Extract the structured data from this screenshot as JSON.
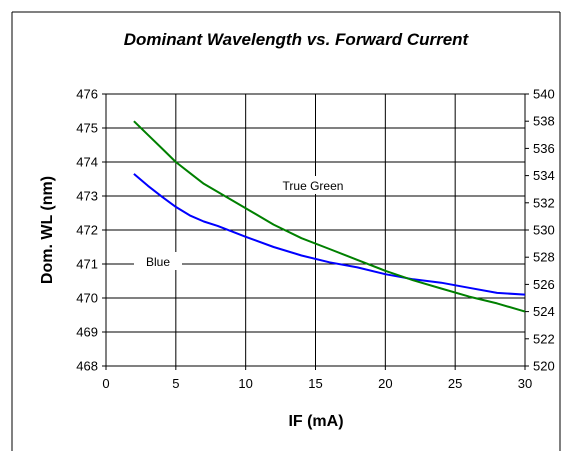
{
  "chart_data": {
    "type": "line",
    "title": "Dominant Wavelength vs. Forward Current",
    "xlabel": "IF (mA)",
    "ylabel": "Dom. WL (nm)",
    "y2label": "",
    "xlim": [
      0,
      30
    ],
    "ylim": [
      468,
      476
    ],
    "y2lim": [
      520,
      540
    ],
    "x_ticks": [
      0,
      5,
      10,
      15,
      20,
      25,
      30
    ],
    "y_ticks": [
      468,
      469,
      470,
      471,
      472,
      473,
      474,
      475,
      476
    ],
    "y2_ticks": [
      520,
      522,
      524,
      526,
      528,
      530,
      532,
      534,
      536,
      538,
      540
    ],
    "grid": true,
    "legend": "none",
    "series": [
      {
        "name": "Blue",
        "axis": "left",
        "color": "#0000ff",
        "x": [
          2,
          3,
          4,
          5,
          6,
          7,
          8,
          10,
          12,
          14,
          16,
          18,
          20,
          22,
          24,
          26,
          28,
          30
        ],
        "y": [
          473.65,
          473.3,
          472.98,
          472.68,
          472.43,
          472.25,
          472.12,
          471.8,
          471.5,
          471.25,
          471.05,
          470.9,
          470.7,
          470.55,
          470.45,
          470.3,
          470.15,
          470.1
        ]
      },
      {
        "name": "True Green",
        "axis": "right",
        "color": "#008000",
        "x": [
          2,
          3,
          4,
          5,
          6,
          7,
          8,
          10,
          12,
          14,
          16,
          18,
          20,
          22,
          24,
          26,
          28,
          30
        ],
        "y": [
          538.0,
          537.0,
          536.0,
          535.0,
          534.2,
          533.4,
          532.8,
          531.6,
          530.4,
          529.4,
          528.6,
          527.8,
          527.0,
          526.3,
          525.7,
          525.1,
          524.6,
          524.0
        ]
      }
    ],
    "annotations": [
      {
        "text": "True Green",
        "series": "True Green"
      },
      {
        "text": "Blue",
        "series": "Blue"
      }
    ]
  }
}
